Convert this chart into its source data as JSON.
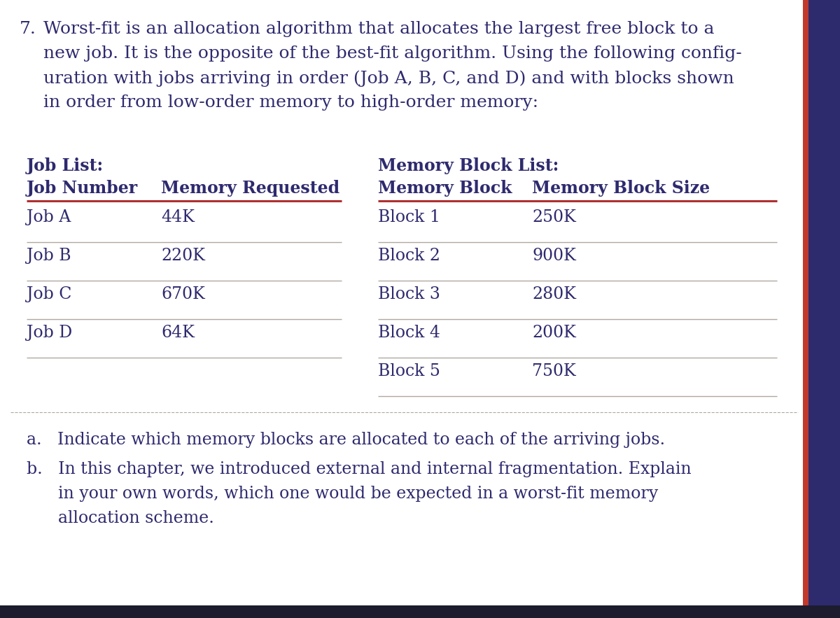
{
  "bg_color": "#ffffff",
  "outer_bg": "#1a1a2e",
  "border_color": "#2e2a6e",
  "right_border_color": "#c0392b",
  "text_color": "#2e2a6e",
  "table_red_line": "#b03030",
  "table_gray_line": "#b0a8a0",
  "question_number": "7.",
  "question_lines": [
    "Worst-fit is an allocation algorithm that allocates the largest free block to a",
    "new job. It is the opposite of the best-fit algorithm. Using the following config-",
    "uration with jobs arriving in order (Job A, B, C, and D) and with blocks shown",
    "in order from low-order memory to high-order memory:"
  ],
  "job_list_title": "Job List:",
  "job_col1_header": "Job Number",
  "job_col2_header": "Memory Requested",
  "jobs": [
    [
      "Job A",
      "44K"
    ],
    [
      "Job B",
      "220K"
    ],
    [
      "Job C",
      "670K"
    ],
    [
      "Job D",
      "64K"
    ]
  ],
  "memory_list_title": "Memory Block List:",
  "mem_col1_header": "Memory Block",
  "mem_col2_header": "Memory Block Size",
  "blocks": [
    [
      "Block 1",
      "250K"
    ],
    [
      "Block 2",
      "900K"
    ],
    [
      "Block 3",
      "280K"
    ],
    [
      "Block 4",
      "200K"
    ],
    [
      "Block 5",
      "750K"
    ]
  ],
  "answer_a": "a.   Indicate which memory blocks are allocated to each of the arriving jobs.",
  "answer_b_line1": "b.   In this chapter, we introduced external and internal fragmentation. Explain",
  "answer_b_line2": "      in your own words, which one would be expected in a worst-fit memory",
  "answer_b_line3": "      allocation scheme.",
  "fig_width": 12.0,
  "fig_height": 8.83,
  "dpi": 100
}
